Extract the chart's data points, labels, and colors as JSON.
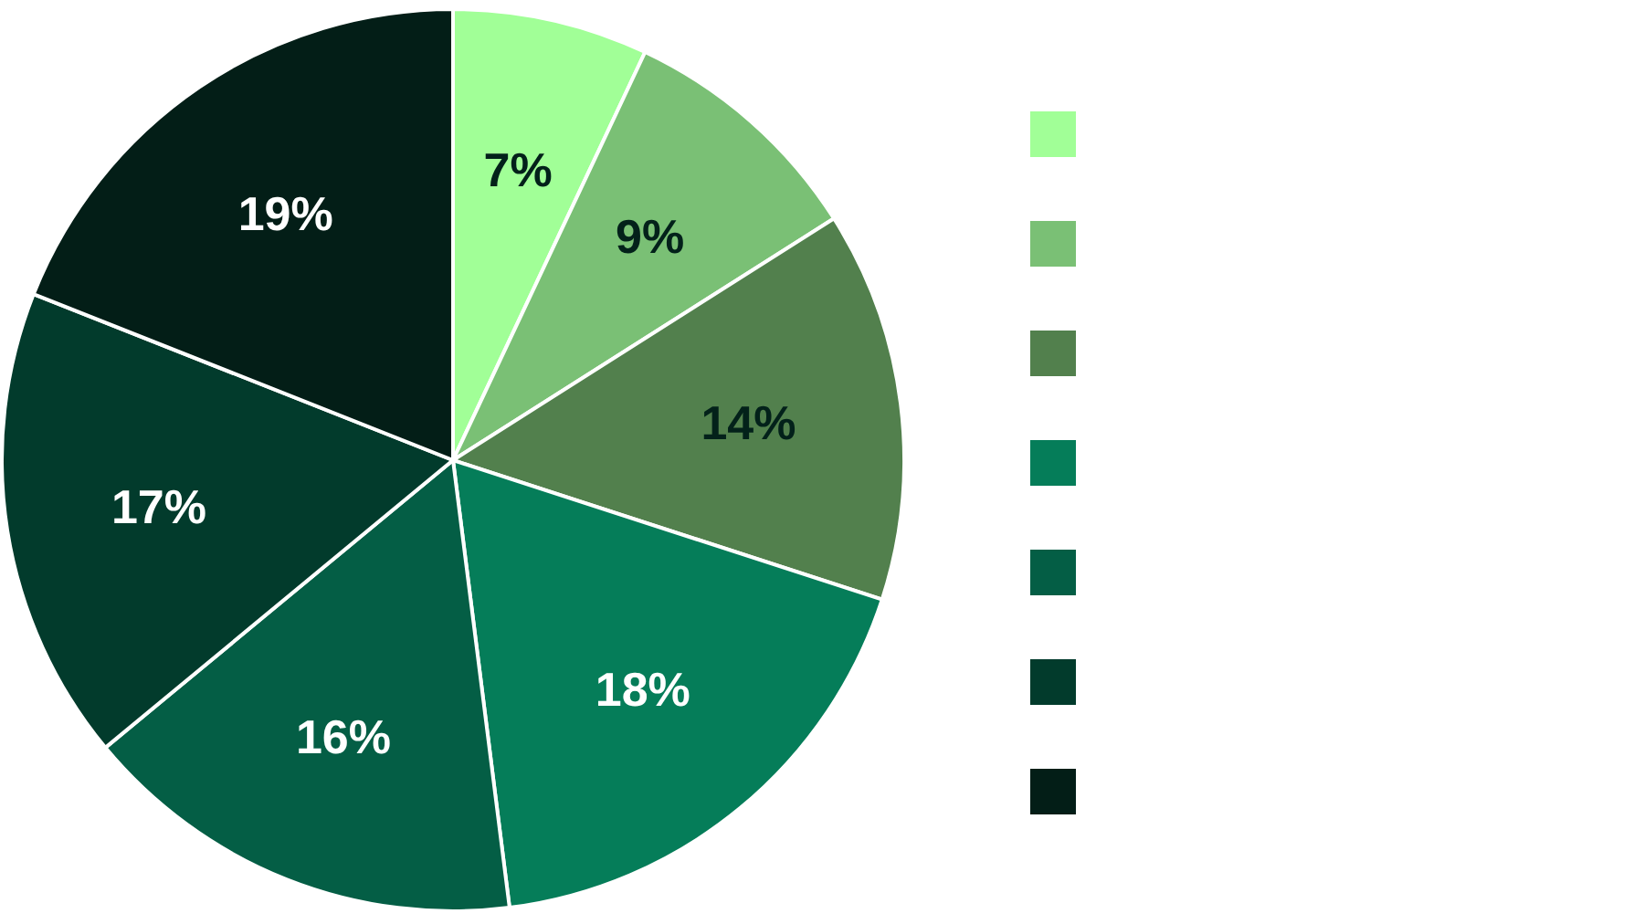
{
  "chart_data": {
    "type": "pie",
    "categories": [
      null,
      null,
      null,
      null,
      null,
      null,
      null
    ],
    "values": [
      7,
      9,
      14,
      18,
      16,
      17,
      19
    ],
    "colors": [
      "#a1ff97",
      "#7ac075",
      "#52804d",
      "#057d59",
      "#045e45",
      "#023b2c",
      "#031e17"
    ],
    "value_labels": [
      "7%",
      "9%",
      "14%",
      "18%",
      "16%",
      "17%",
      "19%"
    ]
  }
}
